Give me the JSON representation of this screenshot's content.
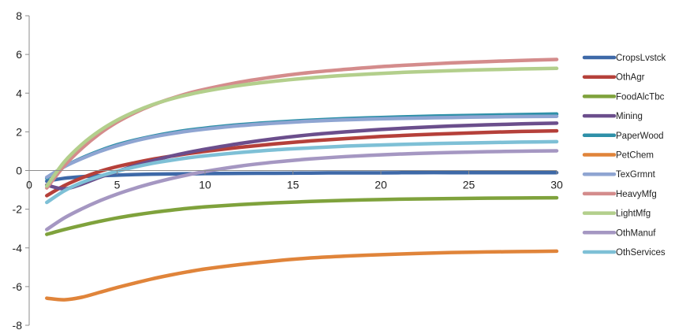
{
  "chart_data": {
    "type": "line",
    "title": "",
    "xlabel": "",
    "ylabel": "",
    "xlim": [
      0,
      30
    ],
    "ylim": [
      -8,
      8
    ],
    "x_ticks": [
      0,
      5,
      10,
      15,
      20,
      25,
      30
    ],
    "y_ticks": [
      -8,
      -6,
      -4,
      -2,
      0,
      2,
      4,
      6,
      8
    ],
    "grid": false,
    "legend_position": "right",
    "x": [
      1,
      2,
      3,
      4,
      5,
      6,
      7,
      8,
      9,
      10,
      12,
      14,
      16,
      18,
      20,
      22,
      24,
      26,
      28,
      30
    ],
    "series": [
      {
        "name": "CropsLvstck",
        "color": "#3E69A8",
        "values": [
          -0.55,
          -0.4,
          -0.32,
          -0.27,
          -0.24,
          -0.21,
          -0.19,
          -0.18,
          -0.17,
          -0.16,
          -0.15,
          -0.14,
          -0.13,
          -0.12,
          -0.12,
          -0.11,
          -0.11,
          -0.11,
          -0.11,
          -0.11
        ]
      },
      {
        "name": "OthAgr",
        "color": "#B5403A",
        "values": [
          -1.3,
          -0.78,
          -0.38,
          -0.05,
          0.2,
          0.4,
          0.58,
          0.73,
          0.87,
          0.99,
          1.2,
          1.38,
          1.53,
          1.65,
          1.76,
          1.84,
          1.91,
          1.97,
          2.02,
          2.05
        ]
      },
      {
        "name": "FoodAlcTbc",
        "color": "#7FA23C",
        "values": [
          -3.3,
          -3.05,
          -2.83,
          -2.63,
          -2.45,
          -2.3,
          -2.17,
          -2.06,
          -1.96,
          -1.88,
          -1.76,
          -1.67,
          -1.6,
          -1.54,
          -1.5,
          -1.47,
          -1.45,
          -1.43,
          -1.42,
          -1.41
        ]
      },
      {
        "name": "Mining",
        "color": "#6B4E8C",
        "values": [
          -0.75,
          -0.95,
          -0.7,
          -0.35,
          -0.05,
          0.25,
          0.5,
          0.73,
          0.93,
          1.1,
          1.4,
          1.65,
          1.85,
          2.0,
          2.12,
          2.22,
          2.3,
          2.36,
          2.41,
          2.45
        ]
      },
      {
        "name": "PaperWood",
        "color": "#2E90A8",
        "values": [
          -0.4,
          0.2,
          0.65,
          1.02,
          1.33,
          1.57,
          1.77,
          1.94,
          2.08,
          2.19,
          2.37,
          2.5,
          2.6,
          2.68,
          2.74,
          2.79,
          2.83,
          2.86,
          2.89,
          2.92
        ]
      },
      {
        "name": "PetChem",
        "color": "#E0843A",
        "values": [
          -6.6,
          -6.68,
          -6.55,
          -6.3,
          -6.05,
          -5.82,
          -5.6,
          -5.41,
          -5.24,
          -5.09,
          -4.86,
          -4.67,
          -4.52,
          -4.42,
          -4.35,
          -4.29,
          -4.24,
          -4.21,
          -4.19,
          -4.17
        ]
      },
      {
        "name": "TexGrmnt",
        "color": "#8FA5D2",
        "values": [
          -0.35,
          0.2,
          0.62,
          0.98,
          1.28,
          1.53,
          1.73,
          1.89,
          2.03,
          2.14,
          2.32,
          2.45,
          2.55,
          2.62,
          2.67,
          2.71,
          2.74,
          2.77,
          2.79,
          2.8
        ]
      },
      {
        "name": "HeavyMfg",
        "color": "#D48C8C",
        "values": [
          -0.9,
          0.25,
          1.15,
          1.9,
          2.5,
          2.98,
          3.38,
          3.7,
          3.98,
          4.2,
          4.57,
          4.85,
          5.07,
          5.23,
          5.37,
          5.47,
          5.56,
          5.63,
          5.69,
          5.74
        ]
      },
      {
        "name": "LightMfg",
        "color": "#B3CF8C",
        "values": [
          -0.8,
          0.45,
          1.35,
          2.05,
          2.6,
          3.04,
          3.4,
          3.68,
          3.91,
          4.1,
          4.4,
          4.62,
          4.79,
          4.92,
          5.02,
          5.1,
          5.16,
          5.21,
          5.25,
          5.28
        ]
      },
      {
        "name": "OthManuf",
        "color": "#A597C2",
        "values": [
          -3.05,
          -2.45,
          -1.98,
          -1.57,
          -1.22,
          -0.92,
          -0.66,
          -0.43,
          -0.23,
          -0.05,
          0.23,
          0.44,
          0.6,
          0.72,
          0.81,
          0.88,
          0.93,
          0.97,
          1.0,
          1.02
        ]
      },
      {
        "name": "OthServices",
        "color": "#7EC0D6",
        "values": [
          -1.65,
          -1.05,
          -0.62,
          -0.3,
          -0.04,
          0.18,
          0.37,
          0.52,
          0.65,
          0.76,
          0.93,
          1.07,
          1.17,
          1.26,
          1.32,
          1.37,
          1.41,
          1.44,
          1.47,
          1.49
        ]
      }
    ]
  }
}
